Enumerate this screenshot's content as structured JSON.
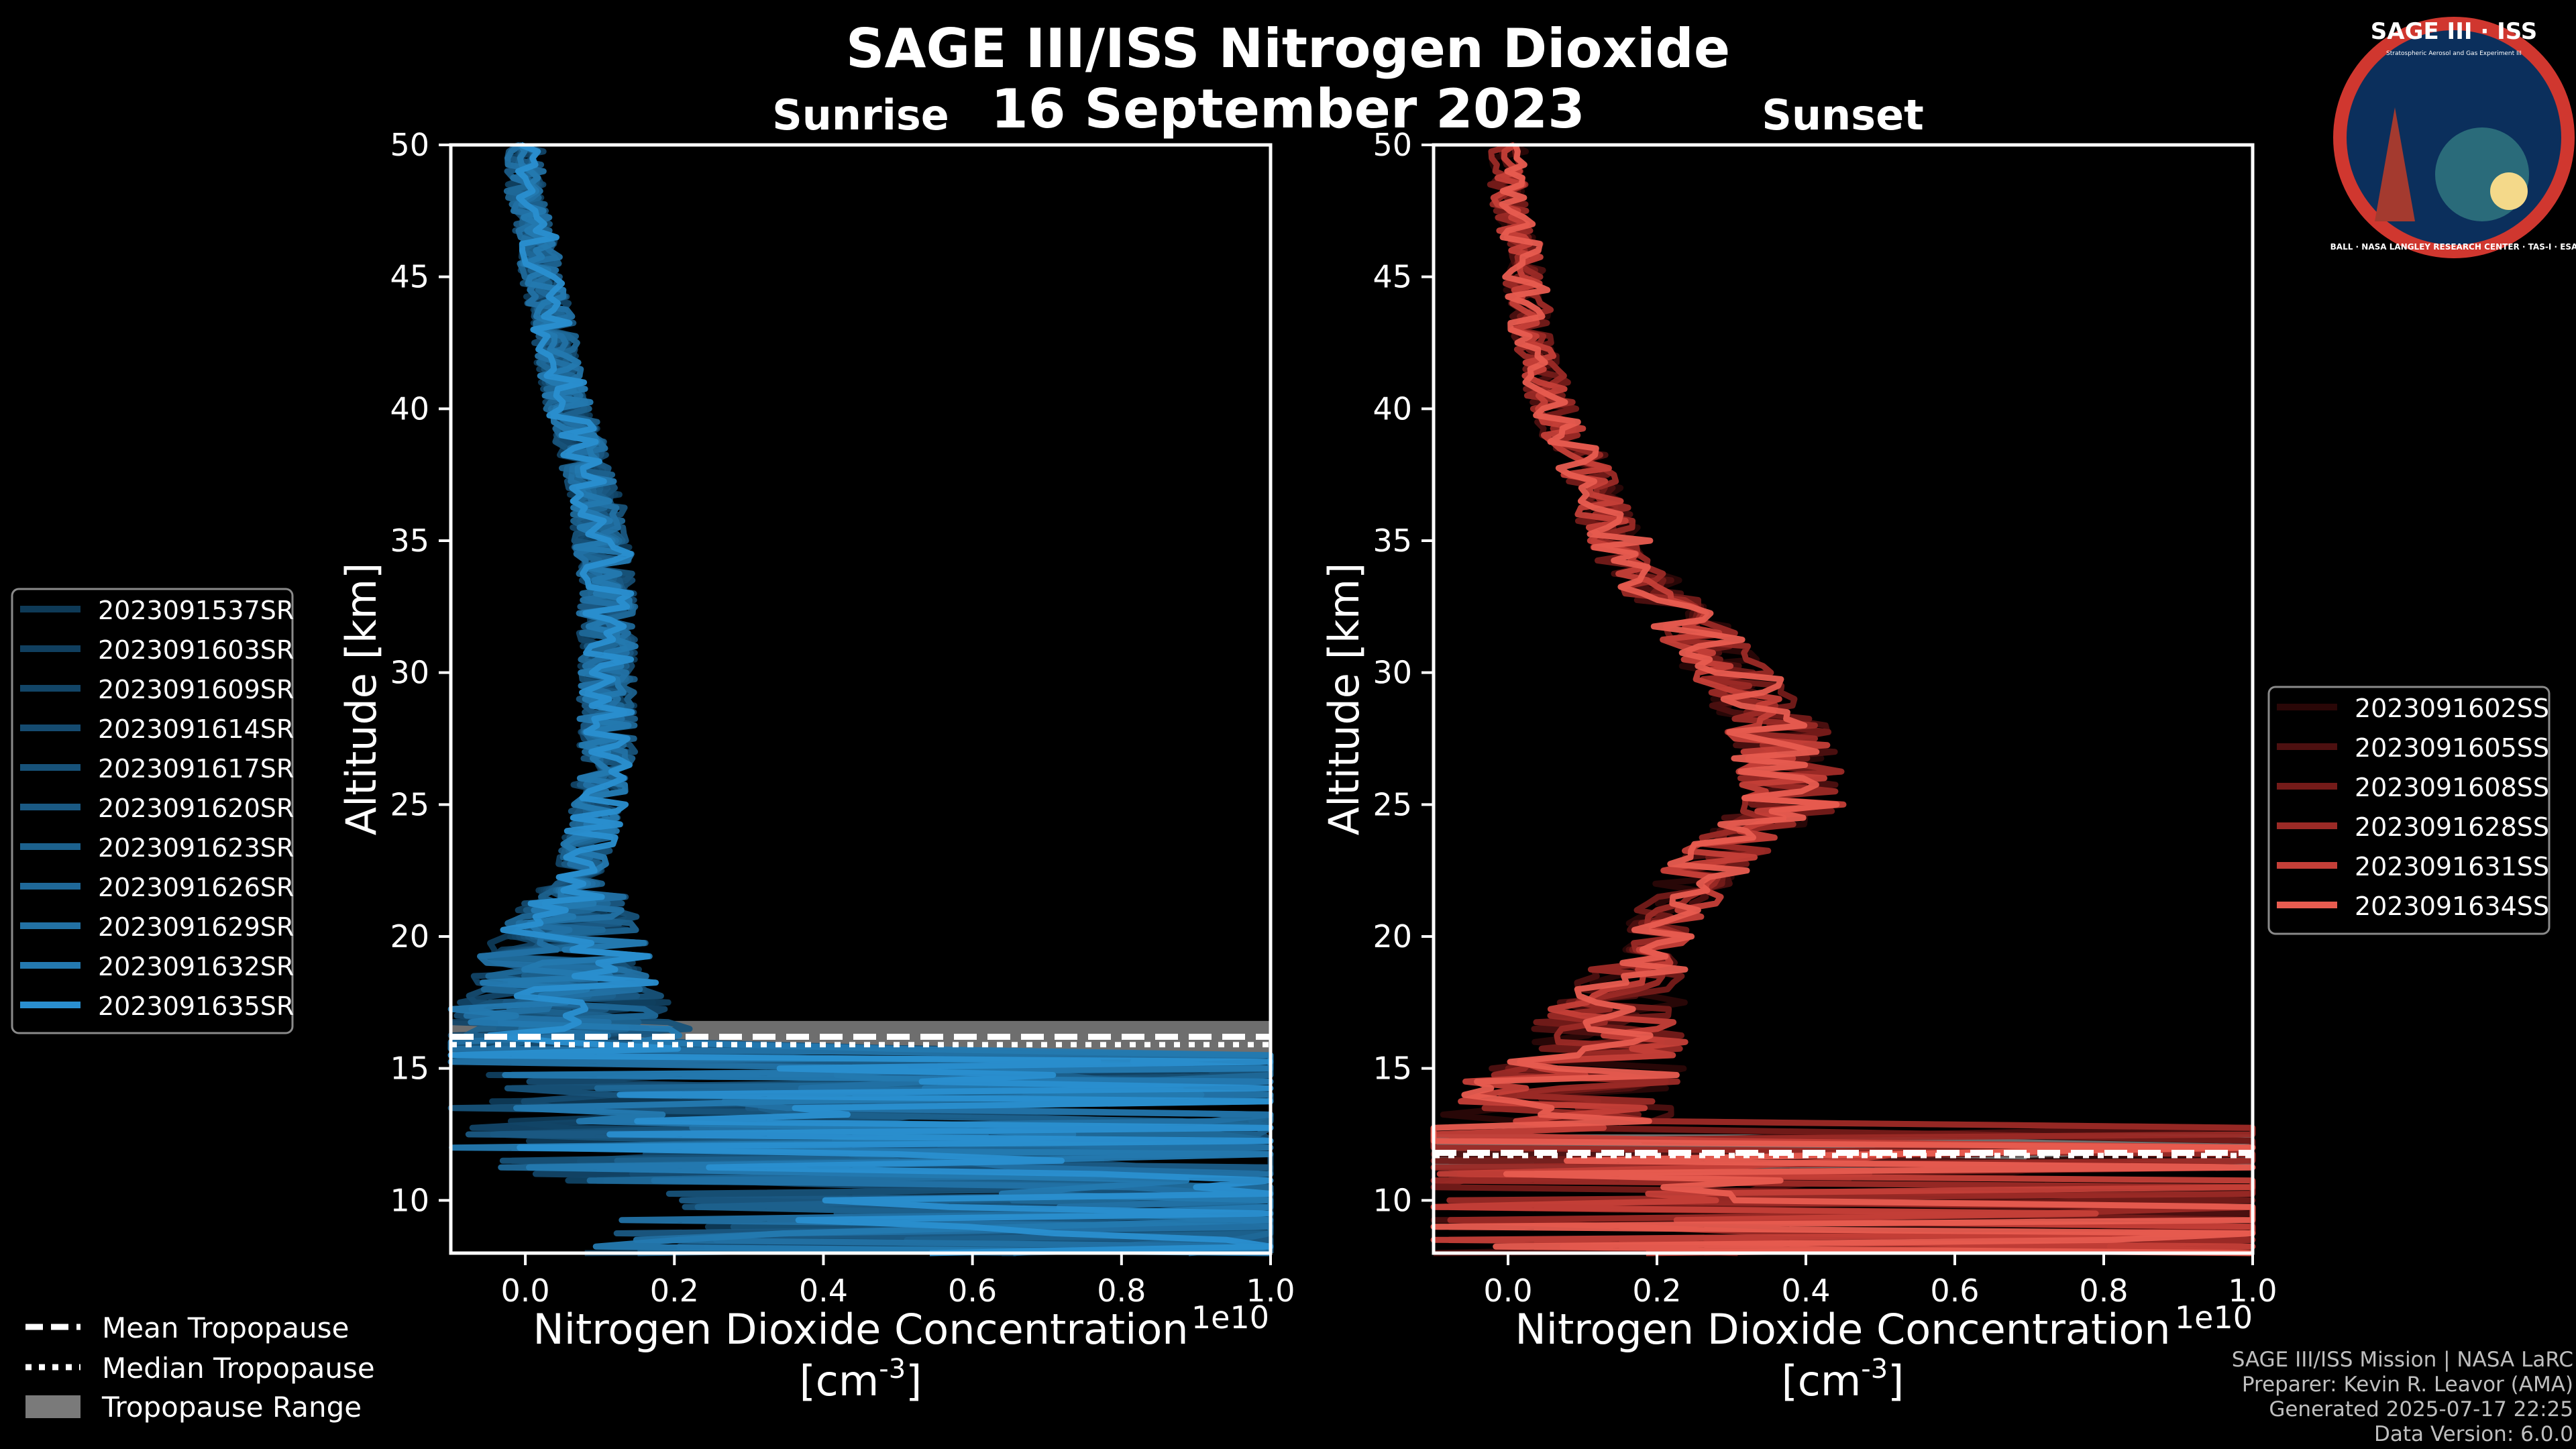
{
  "figure": {
    "title": "SAGE III/ISS Nitrogen Dioxide",
    "date": "16 September 2023",
    "colors": {
      "background": "#000000",
      "sunrise_series": [
        "#0e3a57",
        "#103f5f",
        "#124567",
        "#154b70",
        "#175279",
        "#1a5983",
        "#1c618d",
        "#1f6898",
        "#2271a4",
        "#2479b0",
        "#2a8fd0"
      ],
      "sunset_series": [
        "#2a0707",
        "#4d1010",
        "#741b19",
        "#9b2a26",
        "#c53f38",
        "#e85c50"
      ],
      "tropopause_band": "#7a7a7a",
      "frame": "#ffffff"
    }
  },
  "chart_data": [
    {
      "type": "line",
      "title": "Sunrise",
      "xlabel": "Nitrogen Dioxide Concentration",
      "xlabel_units": "[cm",
      "xlabel_units_exp": "-3",
      "xlabel_units_close": "]",
      "x_offset_label": "1e10",
      "ylabel": "Altitude [km]",
      "xlim": [
        -0.1,
        1.0
      ],
      "ylim": [
        8,
        50
      ],
      "x_scale": 10000000000.0,
      "xticks": [
        0.0,
        0.2,
        0.4,
        0.6,
        0.8,
        1.0
      ],
      "xtick_labels": [
        "0.0",
        "0.2",
        "0.4",
        "0.6",
        "0.8",
        "1.0"
      ],
      "yticks": [
        10,
        15,
        20,
        25,
        30,
        35,
        40,
        45,
        50
      ],
      "ytick_labels": [
        "10",
        "15",
        "20",
        "25",
        "30",
        "35",
        "40",
        "45",
        "50"
      ],
      "profile_mean": {
        "altitude": [
          8,
          9,
          10,
          11,
          12,
          13,
          14,
          15,
          16,
          17,
          18,
          19,
          20,
          21,
          22,
          23,
          24,
          25,
          26,
          27,
          28,
          29,
          30,
          31,
          32,
          33,
          34,
          35,
          36,
          37,
          38,
          39,
          40,
          41,
          42,
          43,
          44,
          45,
          46,
          47,
          48,
          49,
          50
        ],
        "value": [
          0.6,
          0.6,
          0.55,
          0.5,
          0.45,
          0.45,
          0.4,
          0.35,
          0.05,
          0.06,
          0.04,
          0.05,
          0.06,
          0.07,
          0.07,
          0.08,
          0.09,
          0.1,
          0.1,
          0.11,
          0.11,
          0.11,
          0.11,
          0.11,
          0.11,
          0.11,
          0.11,
          0.1,
          0.1,
          0.09,
          0.08,
          0.07,
          0.06,
          0.05,
          0.04,
          0.04,
          0.03,
          0.02,
          0.02,
          0.01,
          0.0,
          0.0,
          0.0
        ]
      },
      "tropopause": {
        "mean": 16.2,
        "median": 15.9,
        "range": [
          15.6,
          16.8
        ]
      },
      "series": [
        {
          "name": "2023091537SR"
        },
        {
          "name": "2023091603SR"
        },
        {
          "name": "2023091609SR"
        },
        {
          "name": "2023091614SR"
        },
        {
          "name": "2023091617SR"
        },
        {
          "name": "2023091620SR"
        },
        {
          "name": "2023091623SR"
        },
        {
          "name": "2023091626SR"
        },
        {
          "name": "2023091629SR"
        },
        {
          "name": "2023091632SR"
        },
        {
          "name": "2023091635SR"
        }
      ],
      "legend_placement": "left"
    },
    {
      "type": "line",
      "title": "Sunset",
      "xlabel": "Nitrogen Dioxide Concentration",
      "xlabel_units": "[cm",
      "xlabel_units_exp": "-3",
      "xlabel_units_close": "]",
      "x_offset_label": "1e10",
      "ylabel": "Altitude [km]",
      "xlim": [
        -0.1,
        1.0
      ],
      "ylim": [
        8,
        50
      ],
      "x_scale": 10000000000.0,
      "xticks": [
        0.0,
        0.2,
        0.4,
        0.6,
        0.8,
        1.0
      ],
      "xtick_labels": [
        "0.0",
        "0.2",
        "0.4",
        "0.6",
        "0.8",
        "1.0"
      ],
      "yticks": [
        10,
        15,
        20,
        25,
        30,
        35,
        40,
        45,
        50
      ],
      "ytick_labels": [
        "10",
        "15",
        "20",
        "25",
        "30",
        "35",
        "40",
        "45",
        "50"
      ],
      "profile_mean": {
        "altitude": [
          8,
          9,
          10,
          11,
          12,
          13,
          14,
          15,
          16,
          17,
          18,
          19,
          20,
          21,
          22,
          23,
          24,
          25,
          26,
          27,
          28,
          29,
          30,
          31,
          32,
          33,
          34,
          35,
          36,
          37,
          38,
          39,
          40,
          41,
          42,
          43,
          44,
          45,
          46,
          47,
          48,
          49,
          50
        ],
        "value": [
          0.3,
          0.35,
          0.3,
          0.2,
          0.1,
          0.06,
          0.08,
          0.1,
          0.12,
          0.14,
          0.16,
          0.18,
          0.2,
          0.22,
          0.25,
          0.28,
          0.33,
          0.38,
          0.38,
          0.37,
          0.36,
          0.33,
          0.3,
          0.27,
          0.24,
          0.2,
          0.17,
          0.15,
          0.13,
          0.12,
          0.1,
          0.08,
          0.06,
          0.05,
          0.04,
          0.03,
          0.03,
          0.02,
          0.02,
          0.01,
          0.0,
          0.0,
          0.0
        ]
      },
      "tropopause": {
        "mean": 11.8,
        "median": 11.7,
        "range": [
          11.2,
          12.5
        ]
      },
      "series": [
        {
          "name": "2023091602SS"
        },
        {
          "name": "2023091605SS"
        },
        {
          "name": "2023091608SS"
        },
        {
          "name": "2023091628SS"
        },
        {
          "name": "2023091631SS"
        },
        {
          "name": "2023091634SS"
        }
      ],
      "legend_placement": "right"
    }
  ],
  "tropo_legend": {
    "mean": "Mean Tropopause",
    "median": "Median Tropopause",
    "range": "Tropopause Range"
  },
  "logo": {
    "title": "SAGE III · ISS",
    "small_text": "Stratospheric Aerosol and Gas Experiment III",
    "ring_text": "BALL · NASA LANGLEY RESEARCH CENTER · TAS-I · ESA"
  },
  "footer": {
    "mission": "SAGE III/ISS Mission | NASA LaRC",
    "preparer": "Preparer: Kevin R. Leavor (AMA)",
    "generated": "Generated 2025-07-17 22:25",
    "version": "Data Version: 6.0.0"
  }
}
